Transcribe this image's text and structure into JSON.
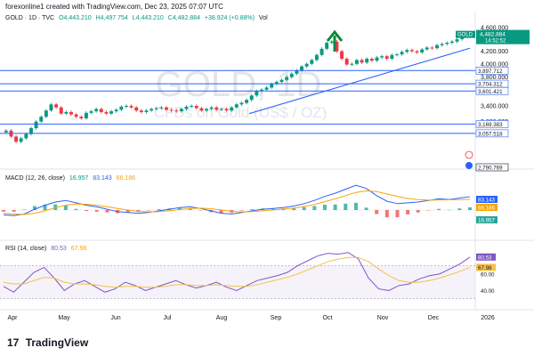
{
  "header": {
    "created_by": "forexonline1 created with TradingView.com, Dec 23, 2025 07:07 UTC"
  },
  "symbol_bar": {
    "symbol": "GOLD · 1D · TVC",
    "open": "O4,443.210",
    "high": "H4,497.754",
    "low": "L4,443.210",
    "close": "C4,482.884",
    "change": "+38.924 (+0.88%)",
    "vol": "Vol"
  },
  "watermark": {
    "line1": "GOLD, 1D",
    "line2": "CFDs on Gold (US$ / OZ)"
  },
  "last_price": {
    "symbol": "GOLD",
    "price": "4,482.884",
    "countdown": "14:52:52"
  },
  "price_axis_labels": [
    "4,600.000",
    "4,200.000",
    "4,000.000",
    "3,800.000",
    "3,400.000",
    "3,200.000"
  ],
  "horizontal_levels": [
    "3,897.712",
    "3,704.312",
    "3,601.421",
    "3,169.383",
    "3,057.518",
    "2,790.769"
  ],
  "macd": {
    "label": "MACD (12, 26, close)",
    "hist": "16.957",
    "macd": "83.143",
    "signal": "66.186"
  },
  "rsi": {
    "label": "RSI (14, close)",
    "value": "80.53",
    "ma": "67.98",
    "axis": [
      "80.53",
      "67.98",
      "60.00",
      "40.00"
    ]
  },
  "x_axis": [
    "Apr",
    "May",
    "Jun",
    "Jul",
    "Aug",
    "Sep",
    "Oct",
    "Nov",
    "Dec",
    "2026"
  ],
  "footer": {
    "brand": "TradingView"
  },
  "colors": {
    "up": "#089981",
    "down": "#f23645",
    "level": "#2962ff",
    "macd_line": "#2962ff",
    "signal_line": "#f7a600",
    "rsi_line": "#7e57c2",
    "rsi_ma": "#f7c04a",
    "arrow": "#0a8a3a"
  },
  "chart_data": [
    {
      "type": "candlestick",
      "title": "GOLD, 1D",
      "subtitle": "CFDs on Gold (US$ / OZ)",
      "x_range": [
        "Apr",
        "2026"
      ],
      "ylim": [
        2700,
        4650
      ],
      "scale": "log",
      "closes": [
        3090,
        3020,
        2960,
        3000,
        3050,
        3120,
        3200,
        3260,
        3340,
        3420,
        3380,
        3300,
        3320,
        3290,
        3260,
        3240,
        3310,
        3330,
        3360,
        3320,
        3300,
        3330,
        3350,
        3390,
        3400,
        3380,
        3340,
        3320,
        3340,
        3360,
        3370,
        3380,
        3350,
        3340,
        3330,
        3360,
        3390,
        3400,
        3370,
        3340,
        3360,
        3380,
        3350,
        3360,
        3340,
        3380,
        3420,
        3440,
        3480,
        3540,
        3600,
        3620,
        3650,
        3700,
        3730,
        3760,
        3800,
        3850,
        3900,
        3960,
        4000,
        4060,
        4140,
        4240,
        4340,
        4360,
        4200,
        4080,
        3990,
        4000,
        4060,
        4020,
        4080,
        4050,
        4100,
        4120,
        4080,
        4140,
        4150,
        4190,
        4220,
        4200,
        4180,
        4230,
        4260,
        4250,
        4300,
        4320,
        4340,
        4360,
        4400,
        4483
      ],
      "support_trendline": {
        "from": [
          "Aug",
          3300
        ],
        "to": [
          "Dec",
          4250
        ]
      },
      "levels": [
        3897.712,
        3704.312,
        3601.421,
        3169.383,
        3057.518
      ]
    },
    {
      "type": "line",
      "title": "MACD (12, 26, close)",
      "series": [
        {
          "name": "MACD",
          "values": [
            -30,
            -35,
            -25,
            5,
            30,
            50,
            60,
            45,
            30,
            20,
            5,
            -10,
            -15,
            -20,
            -15,
            -5,
            5,
            15,
            20,
            10,
            -5,
            -20,
            -25,
            -15,
            -5,
            5,
            10,
            15,
            25,
            40,
            60,
            85,
            105,
            130,
            155,
            135,
            90,
            55,
            40,
            45,
            50,
            60,
            70,
            65,
            75,
            83
          ]
        },
        {
          "name": "Signal",
          "values": [
            -20,
            -25,
            -28,
            -20,
            -5,
            15,
            30,
            38,
            36,
            30,
            20,
            10,
            0,
            -8,
            -12,
            -10,
            -5,
            3,
            10,
            12,
            8,
            0,
            -8,
            -12,
            -10,
            -5,
            0,
            6,
            12,
            22,
            35,
            52,
            70,
            90,
            110,
            120,
            115,
            100,
            85,
            72,
            65,
            62,
            63,
            64,
            65,
            66
          ]
        }
      ],
      "hist_last": 16.957
    },
    {
      "type": "line",
      "title": "RSI (14, close)",
      "ylim": [
        20,
        90
      ],
      "bands": [
        30,
        70
      ],
      "series": [
        {
          "name": "RSI",
          "values": [
            45,
            38,
            50,
            62,
            68,
            55,
            40,
            48,
            52,
            45,
            38,
            42,
            50,
            46,
            40,
            44,
            48,
            52,
            47,
            43,
            46,
            50,
            44,
            40,
            46,
            52,
            55,
            58,
            62,
            70,
            76,
            82,
            85,
            84,
            86,
            78,
            55,
            42,
            40,
            46,
            48,
            54,
            58,
            60,
            66,
            72,
            80.53
          ]
        },
        {
          "name": "RSI MA",
          "values": [
            50,
            48,
            48,
            52,
            56,
            55,
            50,
            48,
            48,
            47,
            45,
            44,
            45,
            45,
            44,
            44,
            45,
            47,
            47,
            46,
            46,
            47,
            46,
            45,
            45,
            47,
            50,
            53,
            56,
            60,
            65,
            70,
            75,
            78,
            80,
            80,
            75,
            66,
            58,
            52,
            50,
            50,
            52,
            55,
            59,
            63,
            67.98
          ]
        }
      ]
    }
  ]
}
